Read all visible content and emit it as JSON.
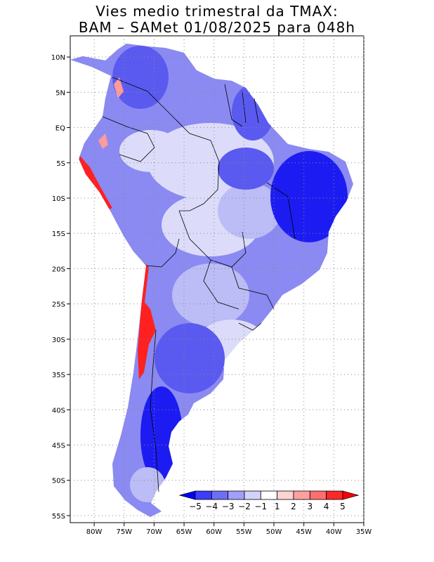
{
  "figure": {
    "title_line1": "Vies medio trimestral da TMAX:",
    "title_line2": "BAM – SAMet 01/08/2025  para 048h"
  },
  "axes": {
    "lon_labels": [
      "80W",
      "75W",
      "70W",
      "65W",
      "60W",
      "55W",
      "50W",
      "45W",
      "40W",
      "35W"
    ],
    "lon_values": [
      -80,
      -75,
      -70,
      -65,
      -60,
      -55,
      -50,
      -45,
      -40,
      -35
    ],
    "lat_labels": [
      "10N",
      "5N",
      "EQ",
      "5S",
      "10S",
      "15S",
      "20S",
      "25S",
      "30S",
      "35S",
      "40S",
      "45S",
      "50S",
      "55S"
    ],
    "lat_values": [
      10,
      5,
      0,
      -5,
      -10,
      -15,
      -20,
      -25,
      -30,
      -35,
      -40,
      -45,
      -50,
      -55
    ],
    "lon_range": [
      -84,
      -35
    ],
    "lat_range": [
      13,
      -56
    ],
    "grid": true
  },
  "colorbar": {
    "labels": [
      "−5",
      "−4",
      "−3",
      "−2",
      "−1",
      "1",
      "2",
      "3",
      "4",
      "5"
    ],
    "colors": [
      "#0000ff",
      "#3c3cfa",
      "#6e6ef5",
      "#a0a0fa",
      "#d2d2fa",
      "#ffffff",
      "#ffd2d2",
      "#ffa0a0",
      "#ff6e6e",
      "#ff2828",
      "#ff0000"
    ]
  },
  "map_colors": {
    "ocean": "#ffffff",
    "strong_blue": "#1c1cf2",
    "blue": "#5a5af0",
    "mid_blue": "#8a8af2",
    "light_blue": "#bcbcf6",
    "pale_blue": "#dcdcfa",
    "red": "#ff2020",
    "pink": "#ff9a9a",
    "border": "#000000"
  }
}
